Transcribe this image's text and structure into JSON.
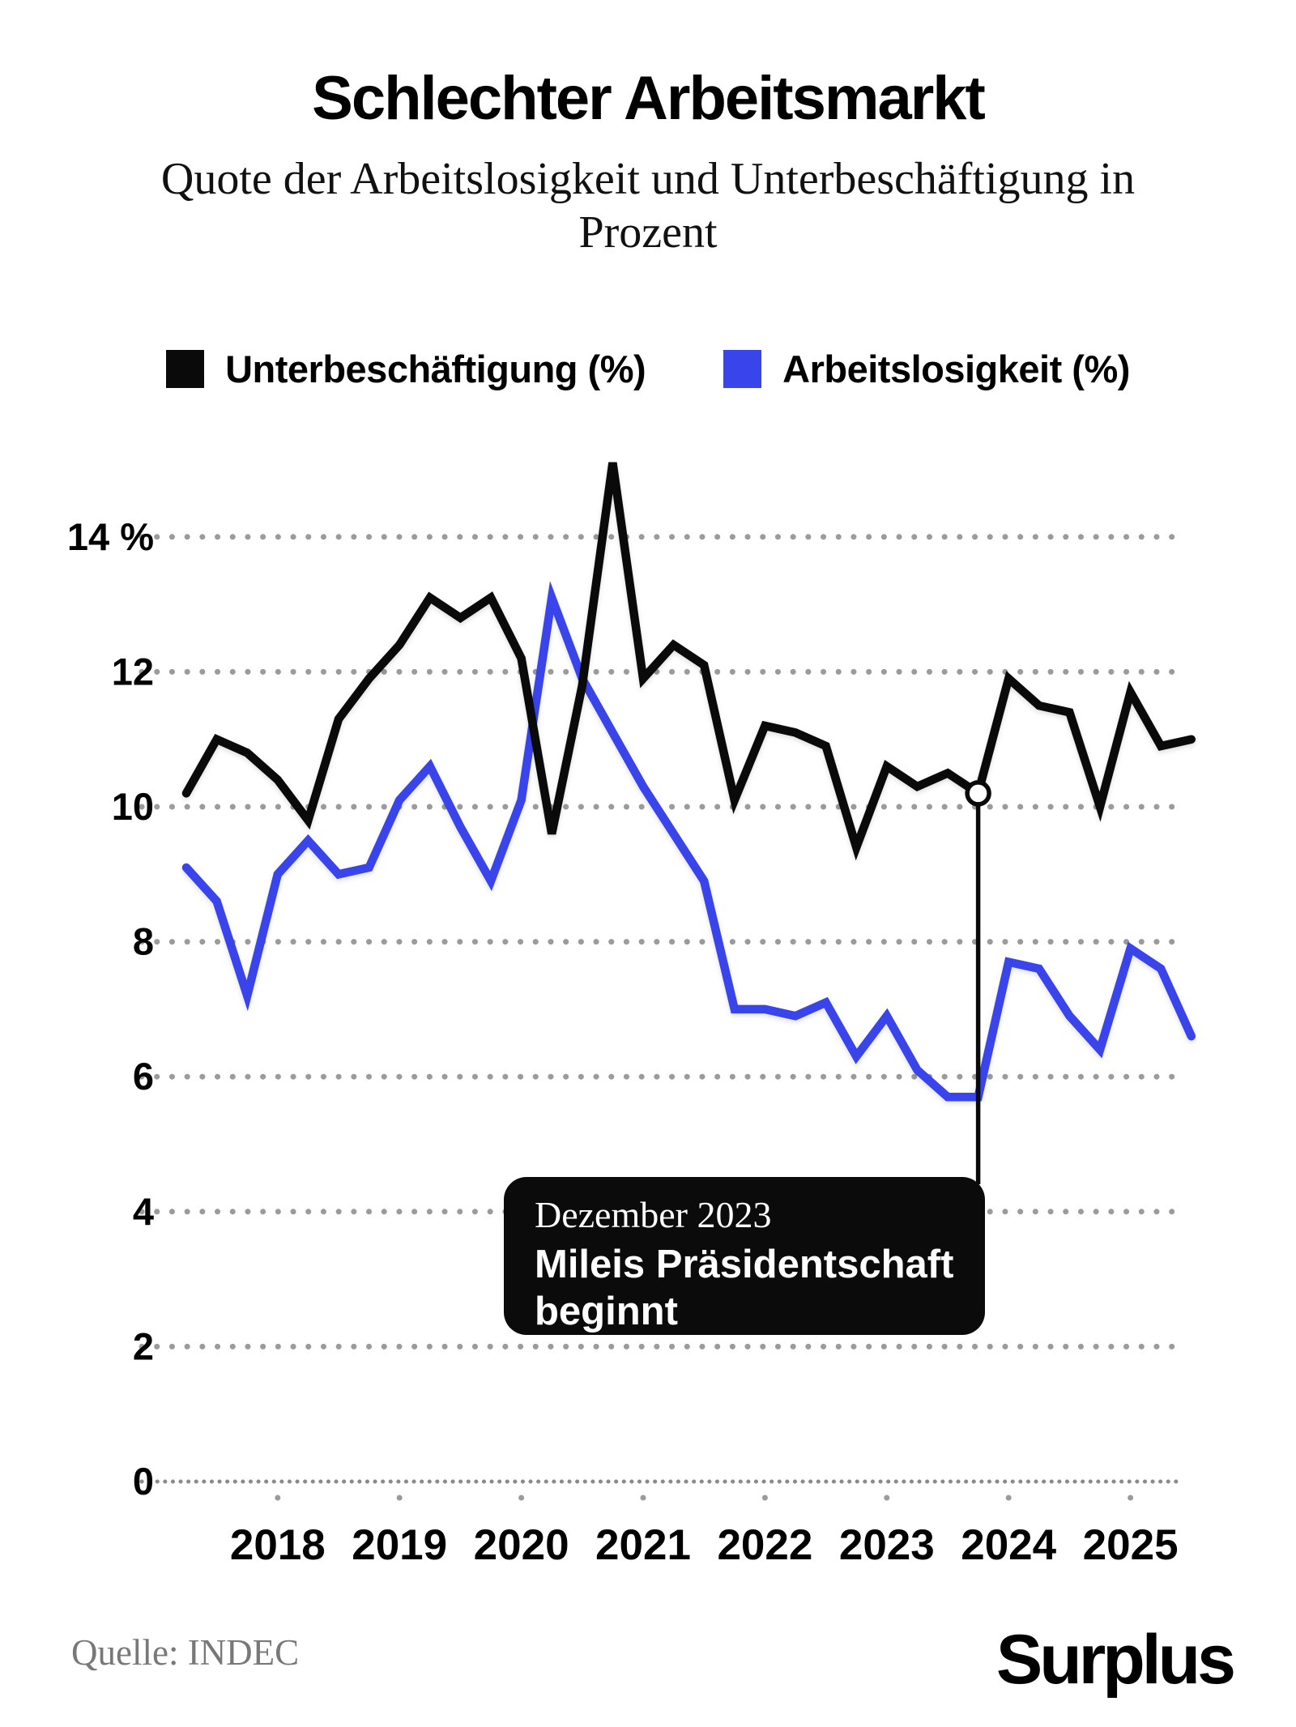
{
  "title": "Schlechter Arbeitsmarkt",
  "subtitle_line1": "Quote der Arbeitslosigkeit und Unterbeschäftigung in",
  "subtitle_line2": "Prozent",
  "legend": {
    "underemployment_label": "Unterbeschäftigung (%)",
    "unemployment_label": "Arbeitslosigkeit (%)"
  },
  "annotation": {
    "date_line": "Dezember 2023",
    "text_line1": "Mileis Präsidentschaft",
    "text_line2": "beginnt"
  },
  "source": "Quelle: INDEC",
  "logo": "Surplus",
  "chart_data": {
    "type": "line",
    "x": [
      "2017-Q2",
      "2017-Q3",
      "2017-Q4",
      "2018-Q1",
      "2018-Q2",
      "2018-Q3",
      "2018-Q4",
      "2019-Q1",
      "2019-Q2",
      "2019-Q3",
      "2019-Q4",
      "2020-Q1",
      "2020-Q2",
      "2020-Q3",
      "2020-Q4",
      "2021-Q1",
      "2021-Q2",
      "2021-Q3",
      "2021-Q4",
      "2022-Q1",
      "2022-Q2",
      "2022-Q3",
      "2022-Q4",
      "2023-Q1",
      "2023-Q2",
      "2023-Q3",
      "2023-Q4",
      "2024-Q1",
      "2024-Q2",
      "2024-Q3",
      "2024-Q4",
      "2025-Q1",
      "2025-Q2",
      "2025-Q3"
    ],
    "series": [
      {
        "name": "Unterbeschäftigung (%)",
        "color": "#0a0a0a",
        "values": [
          10.2,
          11.0,
          10.8,
          10.4,
          9.8,
          11.3,
          11.9,
          12.4,
          13.1,
          12.8,
          13.1,
          12.2,
          9.6,
          11.8,
          15.1,
          11.9,
          12.4,
          12.1,
          10.1,
          11.2,
          11.1,
          10.9,
          9.4,
          10.6,
          10.3,
          10.5,
          10.2,
          11.9,
          11.5,
          11.4,
          10.0,
          11.7,
          10.9,
          11.0
        ]
      },
      {
        "name": "Arbeitslosigkeit (%)",
        "color": "#3944ea",
        "values": [
          9.1,
          8.6,
          7.2,
          9.0,
          9.5,
          9.0,
          9.1,
          10.1,
          10.6,
          9.7,
          8.9,
          10.1,
          13.1,
          11.9,
          11.1,
          10.3,
          9.6,
          8.9,
          7.0,
          7.0,
          6.9,
          7.1,
          6.3,
          6.9,
          6.1,
          5.7,
          5.7,
          7.7,
          7.6,
          6.9,
          6.4,
          7.9,
          7.6,
          6.6
        ]
      }
    ],
    "title": "Schlechter Arbeitsmarkt",
    "xlabel": "",
    "ylabel": "Prozent",
    "ylim": [
      0,
      15.5
    ],
    "yticks": [
      0,
      2,
      4,
      6,
      8,
      10,
      12,
      14
    ],
    "ytick_labels": [
      "0",
      "2",
      "4",
      "6",
      "8",
      "10",
      "12",
      "14 %"
    ],
    "xtick_labels": [
      "2018",
      "2019",
      "2020",
      "2021",
      "2022",
      "2023",
      "2024",
      "2025"
    ],
    "xtick_indices": [
      3,
      7,
      11,
      15,
      19,
      23,
      27,
      31
    ],
    "grid": "horizontal dotted",
    "legend_position": "top",
    "marker": {
      "index": 26,
      "series": "Unterbeschäftigung (%)",
      "value": 10.2,
      "x_label": "2023-Q4"
    }
  }
}
